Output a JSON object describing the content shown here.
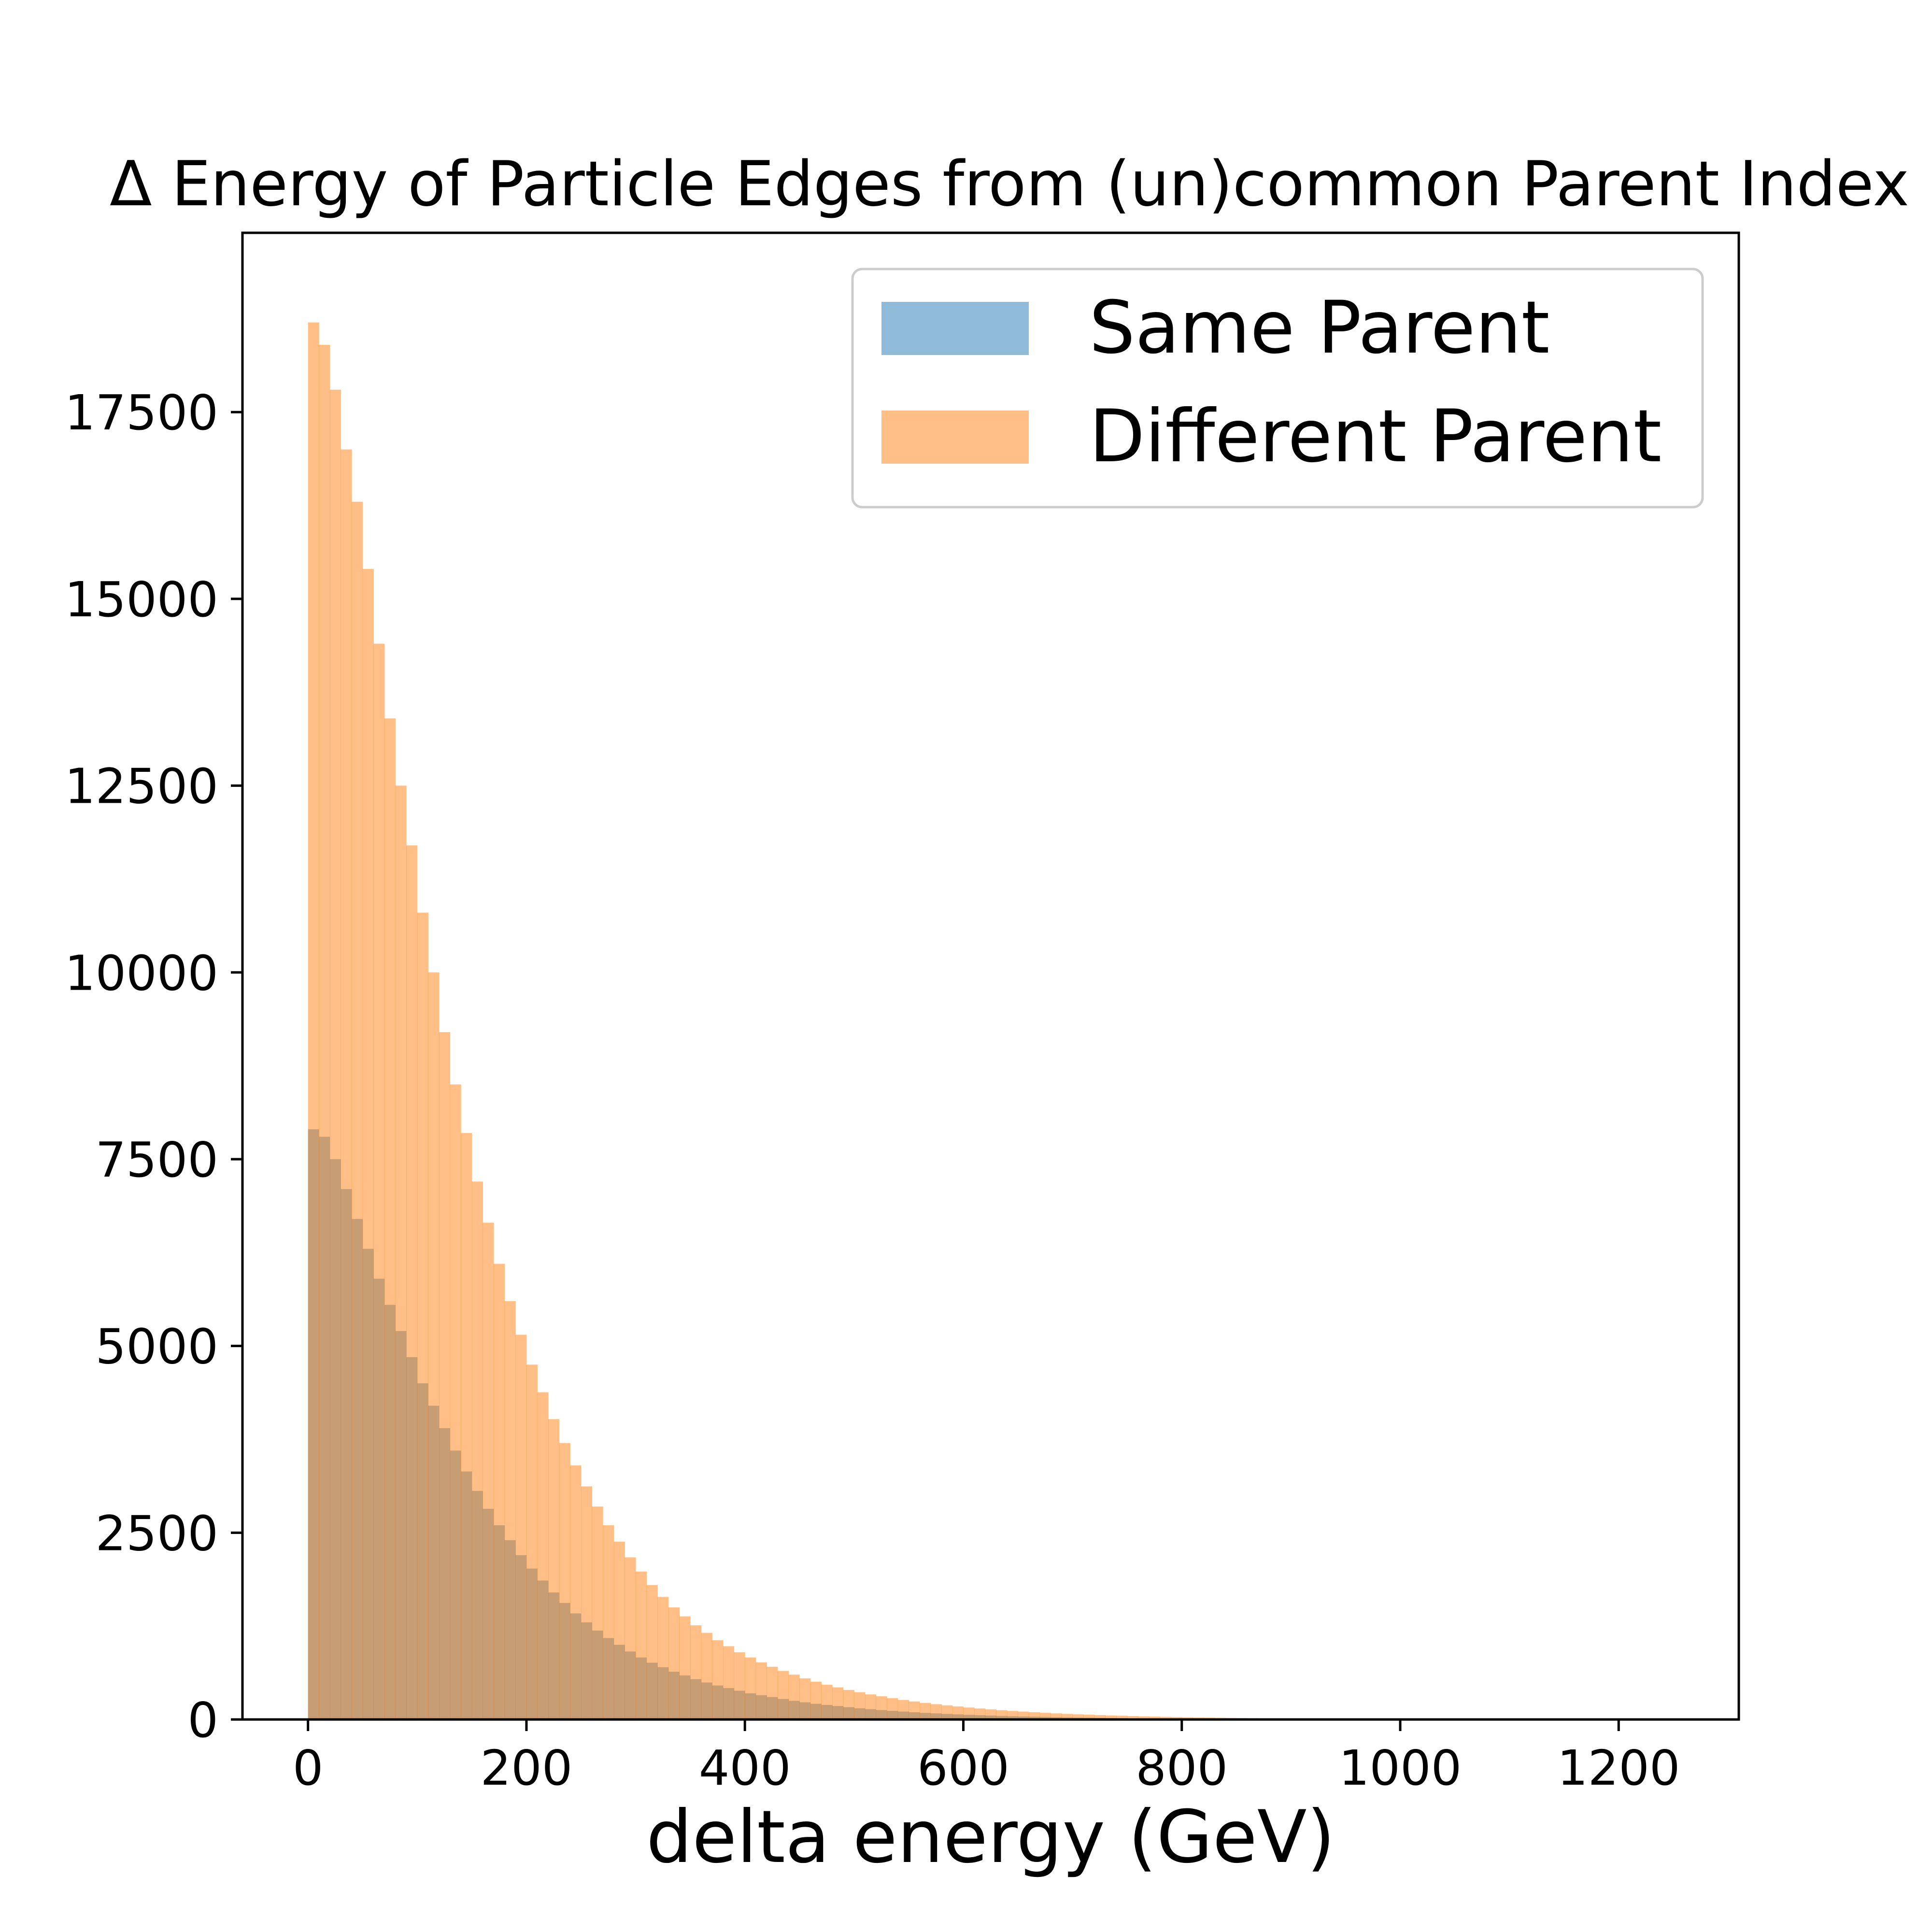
{
  "chart_data": {
    "type": "bar",
    "title": "Δ Energy of Particle Edges from (un)common Parent Index",
    "xlabel": "delta energy (GeV)",
    "ylabel": "",
    "xlim": [
      -60,
      1310
    ],
    "ylim": [
      0,
      19900
    ],
    "xticks": [
      0,
      200,
      400,
      600,
      800,
      1000,
      1200
    ],
    "yticks": [
      0,
      2500,
      5000,
      7500,
      10000,
      12500,
      15000,
      17500
    ],
    "xtick_labels": [
      "0",
      "200",
      "400",
      "600",
      "800",
      "1000",
      "1200"
    ],
    "ytick_labels": [
      "0",
      "2500",
      "5000",
      "7500",
      "10000",
      "12500",
      "15000",
      "17500"
    ],
    "grid": false,
    "legend": {
      "position": "top-right"
    },
    "bin_width": 10,
    "x": [
      0,
      10,
      20,
      30,
      40,
      50,
      60,
      70,
      80,
      90,
      100,
      110,
      120,
      130,
      140,
      150,
      160,
      170,
      180,
      190,
      200,
      210,
      220,
      230,
      240,
      250,
      260,
      270,
      280,
      290,
      300,
      310,
      320,
      330,
      340,
      350,
      360,
      370,
      380,
      390,
      400,
      410,
      420,
      430,
      440,
      450,
      460,
      470,
      480,
      490,
      500,
      510,
      520,
      530,
      540,
      550,
      560,
      570,
      580,
      590,
      600,
      610,
      620,
      630,
      640,
      650,
      660,
      670,
      680,
      690,
      700,
      710,
      720,
      730,
      740,
      750,
      760,
      770,
      780,
      790,
      800,
      810,
      820,
      830,
      840,
      850,
      860,
      870,
      880,
      890,
      900,
      910,
      920,
      930,
      940,
      950,
      960,
      970,
      980,
      990,
      1000,
      1010,
      1020,
      1030,
      1040,
      1050,
      1060,
      1070,
      1080,
      1090,
      1100,
      1110,
      1120,
      1130,
      1140,
      1150,
      1160,
      1170,
      1180,
      1190,
      1200,
      1210,
      1220,
      1230,
      1240
    ],
    "series": [
      {
        "name": "Same Parent",
        "color": "#1f77b4",
        "alpha": 0.5,
        "values": [
          7900,
          7800,
          7500,
          7100,
          6700,
          6300,
          5900,
          5550,
          5200,
          4850,
          4500,
          4200,
          3900,
          3600,
          3320,
          3060,
          2820,
          2600,
          2400,
          2200,
          2020,
          1860,
          1700,
          1560,
          1420,
          1300,
          1190,
          1090,
          1000,
          910,
          830,
          760,
          700,
          640,
          590,
          540,
          495,
          455,
          420,
          385,
          350,
          325,
          300,
          275,
          250,
          230,
          210,
          195,
          180,
          165,
          150,
          138,
          126,
          116,
          106,
          97,
          89,
          82,
          75,
          69,
          63,
          58,
          53,
          48,
          44,
          40,
          37,
          34,
          31,
          28,
          26,
          24,
          22,
          20,
          18,
          16,
          15,
          14,
          13,
          12,
          11,
          10,
          9,
          8,
          7,
          6,
          6,
          5,
          5,
          4,
          4,
          3,
          3,
          3,
          2,
          2,
          2,
          2,
          1,
          1,
          1,
          1,
          1,
          1,
          1,
          0,
          0,
          0,
          0,
          0,
          0,
          0,
          0,
          0,
          0,
          0,
          0,
          0,
          0,
          0,
          0,
          0,
          0,
          0,
          0
        ]
      },
      {
        "name": "Different Parent",
        "color": "#ff7f0e",
        "alpha": 0.5,
        "values": [
          18700,
          18400,
          17800,
          17000,
          16300,
          15400,
          14400,
          13400,
          12500,
          11700,
          10800,
          10000,
          9200,
          8500,
          7850,
          7200,
          6650,
          6100,
          5600,
          5150,
          4750,
          4380,
          4020,
          3700,
          3400,
          3120,
          2850,
          2600,
          2380,
          2170,
          1980,
          1800,
          1640,
          1500,
          1380,
          1260,
          1160,
          1060,
          980,
          900,
          830,
          765,
          705,
          650,
          600,
          550,
          505,
          465,
          430,
          395,
          365,
          335,
          310,
          285,
          262,
          241,
          222,
          205,
          189,
          174,
          160,
          147,
          135,
          124,
          114,
          105,
          97,
          89,
          82,
          75,
          69,
          64,
          59,
          54,
          50,
          46,
          42,
          38,
          35,
          32,
          29,
          27,
          25,
          23,
          21,
          19,
          17,
          16,
          15,
          14,
          13,
          12,
          11,
          10,
          9,
          8,
          7,
          6,
          6,
          5,
          5,
          4,
          4,
          3,
          3,
          3,
          2,
          2,
          2,
          2,
          1,
          1,
          1,
          1,
          1,
          1,
          1,
          1,
          0,
          0,
          0,
          0,
          0,
          0,
          0
        ]
      }
    ]
  }
}
